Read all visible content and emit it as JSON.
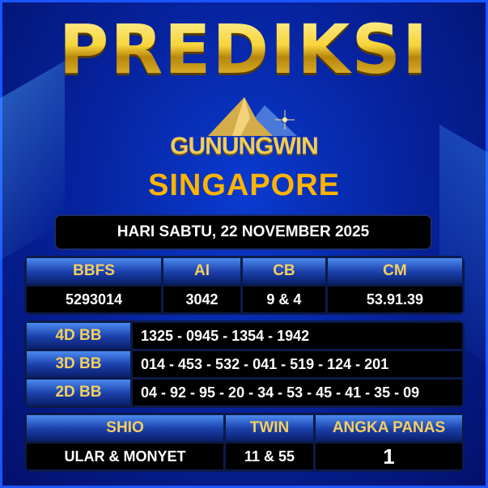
{
  "title": "PREDIKSI",
  "brand": "GUNUNGWIN",
  "market": "SINGAPORE",
  "date": "HARI SABTU, 22 NOVEMBER 2025",
  "main": {
    "headers": [
      "BBFS",
      "AI",
      "CB",
      "CM"
    ],
    "values": [
      "5293014",
      "3042",
      "9 & 4",
      "53.91.39"
    ]
  },
  "bb": [
    {
      "label": "4D BB",
      "value": "1325 - 0945 - 1354 - 1942"
    },
    {
      "label": "3D BB",
      "value": "014 - 453 - 532 - 041 - 519 - 124 - 201"
    },
    {
      "label": "2D BB",
      "value": "04 - 92 - 95 - 20 - 34 - 53 - 45 - 41 - 35 - 09"
    }
  ],
  "extra": {
    "headers": [
      "SHIO",
      "TWIN",
      "ANGKA PANAS"
    ],
    "values": [
      "ULAR & MONYET",
      "11 & 55",
      "1"
    ]
  },
  "colors": {
    "accent_gold": "#f5cf5e",
    "market": "#ffb400",
    "background": "#0624a0"
  },
  "icons": [
    "mountain-logo-icon"
  ]
}
